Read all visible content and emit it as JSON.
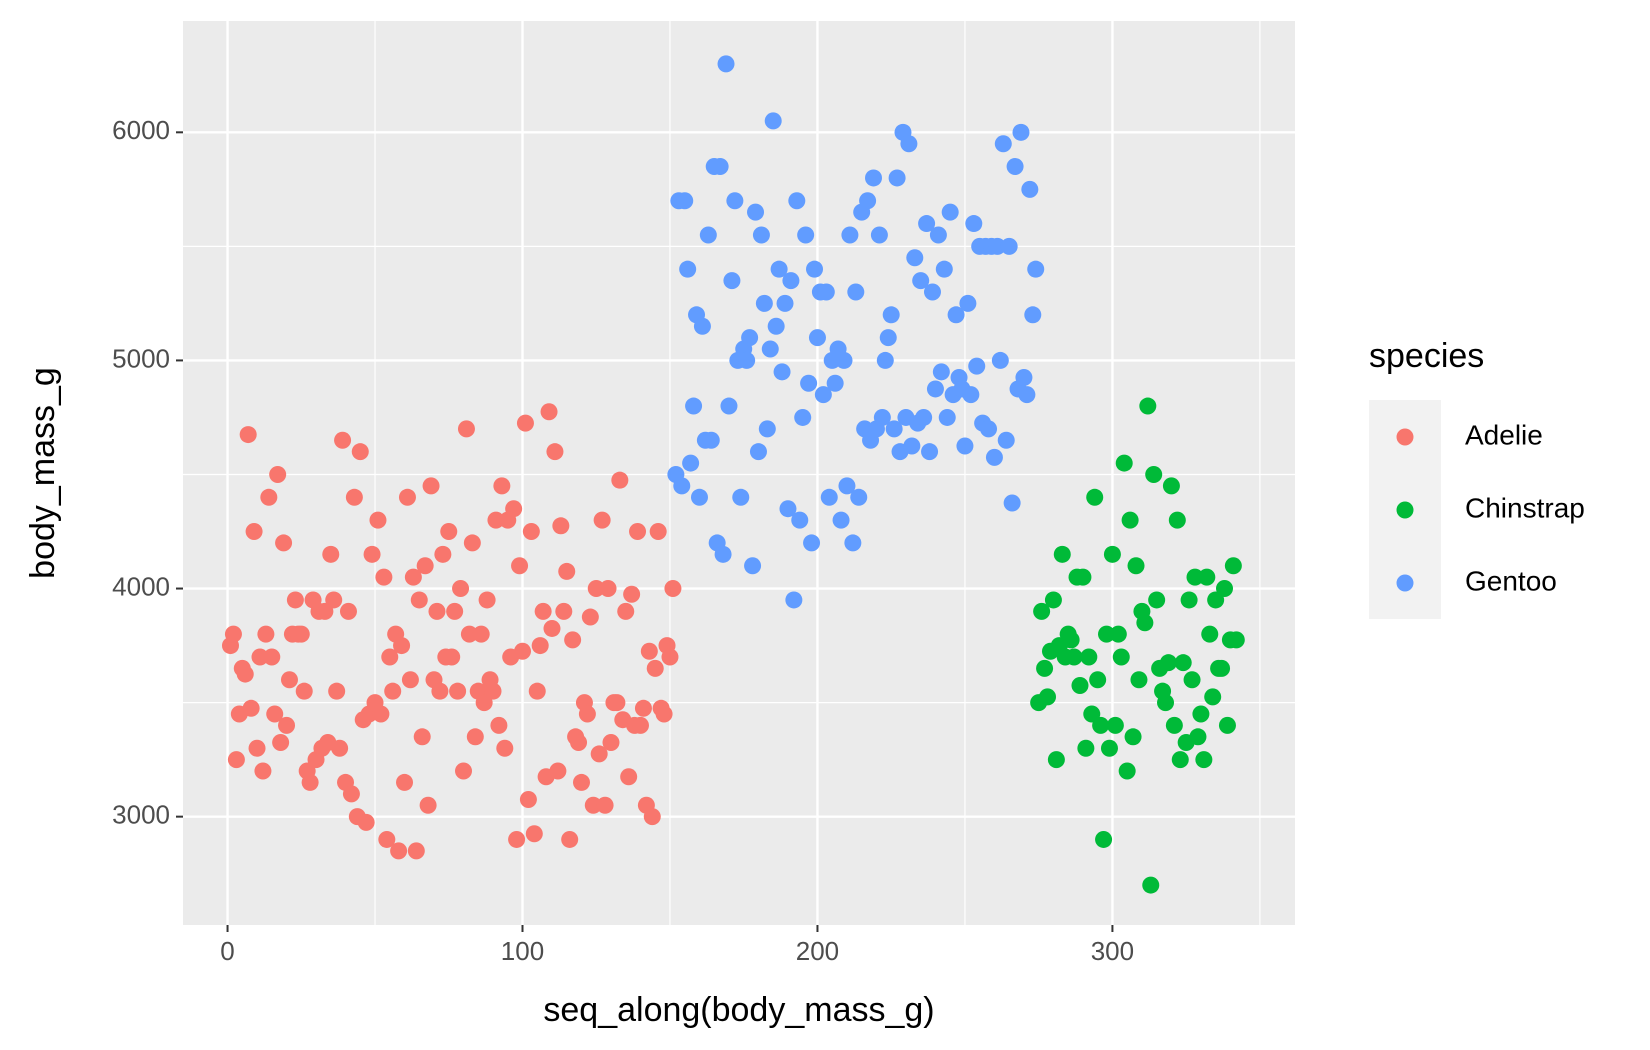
{
  "chart_data": {
    "type": "scatter",
    "x_label": "seq_along(body_mass_g)",
    "y_label": "body_mass_g",
    "legend_title": "species",
    "legend_position": "right",
    "grid": true,
    "xlim": [
      -15.1,
      361.9
    ],
    "ylim": [
      2525,
      6488
    ],
    "xticks": [
      0,
      100,
      200,
      300
    ],
    "yticks": [
      3000,
      4000,
      5000,
      6000
    ],
    "series": [
      {
        "name": "Adelie",
        "color": "#F8766D",
        "x": [
          1,
          2,
          3,
          4,
          5,
          6,
          7,
          8,
          9,
          10,
          11,
          12,
          13,
          14,
          15,
          16,
          17,
          18,
          19,
          20,
          21,
          22,
          23,
          24,
          25,
          26,
          27,
          28,
          29,
          30,
          31,
          32,
          33,
          34,
          35,
          36,
          37,
          38,
          39,
          40,
          41,
          42,
          43,
          44,
          45,
          46,
          47,
          48,
          49,
          50,
          51,
          52,
          53,
          54,
          55,
          56,
          57,
          58,
          59,
          60,
          61,
          62,
          63,
          64,
          65,
          66,
          67,
          68,
          69,
          70,
          71,
          72,
          73,
          74,
          75,
          76,
          77,
          78,
          79,
          80,
          81,
          82,
          83,
          84,
          85,
          86,
          87,
          88,
          89,
          90,
          91,
          92,
          93,
          94,
          95,
          96,
          97,
          98,
          99,
          100,
          101,
          102,
          103,
          104,
          105,
          106,
          107,
          108,
          109,
          110,
          111,
          112,
          113,
          114,
          115,
          116,
          117,
          118,
          119,
          120,
          121,
          122,
          123,
          124,
          125,
          126,
          127,
          128,
          129,
          130,
          131,
          132,
          133,
          134,
          135,
          136,
          137,
          138,
          139,
          140,
          141,
          142,
          143,
          144,
          145,
          146,
          147,
          148,
          149,
          150,
          151
        ],
        "values": [
          3750,
          3800,
          3250,
          3450,
          3650,
          3625,
          4675,
          3475,
          4250,
          3300,
          3700,
          3200,
          3800,
          4400,
          3700,
          3450,
          4500,
          3325,
          4200,
          3400,
          3600,
          3800,
          3950,
          3800,
          3800,
          3550,
          3200,
          3150,
          3950,
          3250,
          3900,
          3300,
          3900,
          3325,
          4150,
          3950,
          3550,
          3300,
          4650,
          3150,
          3900,
          3100,
          4400,
          3000,
          4600,
          3425,
          2975,
          3450,
          4150,
          3500,
          4300,
          3450,
          4050,
          2900,
          3700,
          3550,
          3800,
          2850,
          3750,
          3150,
          4400,
          3600,
          4050,
          2850,
          3950,
          3350,
          4100,
          3050,
          4450,
          3600,
          3900,
          3550,
          4150,
          3700,
          4250,
          3700,
          3900,
          3550,
          4000,
          3200,
          4700,
          3800,
          4200,
          3350,
          3550,
          3800,
          3500,
          3950,
          3600,
          3550,
          4300,
          3400,
          4450,
          3300,
          4300,
          3700,
          4350,
          2900,
          4100,
          3725,
          4725,
          3075,
          4250,
          2925,
          3550,
          3750,
          3900,
          3175,
          4775,
          3825,
          4600,
          3200,
          4275,
          3900,
          4075,
          2900,
          3775,
          3350,
          3325,
          3150,
          3500,
          3450,
          3875,
          3050,
          4000,
          3275,
          4300,
          3050,
          4000,
          3325,
          3500,
          3500,
          4475,
          3425,
          3900,
          3175,
          3975,
          3400,
          4250,
          3400,
          3475,
          3050,
          3725,
          3000,
          3650,
          4250,
          3475,
          3450,
          3750,
          3700,
          4000
        ]
      },
      {
        "name": "Chinstrap",
        "color": "#00BA38",
        "x": [
          275,
          276,
          277,
          278,
          279,
          280,
          281,
          282,
          283,
          284,
          285,
          286,
          287,
          288,
          289,
          290,
          291,
          292,
          293,
          294,
          295,
          296,
          297,
          298,
          299,
          300,
          301,
          302,
          303,
          304,
          305,
          306,
          307,
          308,
          309,
          310,
          311,
          312,
          313,
          314,
          315,
          316,
          317,
          318,
          319,
          320,
          321,
          322,
          323,
          324,
          325,
          326,
          327,
          328,
          329,
          330,
          331,
          332,
          333,
          334,
          335,
          336,
          337,
          338,
          339,
          340,
          341,
          342
        ],
        "values": [
          3500,
          3900,
          3650,
          3525,
          3725,
          3950,
          3250,
          3750,
          4150,
          3700,
          3800,
          3775,
          3700,
          4050,
          3575,
          4050,
          3300,
          3700,
          3450,
          4400,
          3600,
          3400,
          2900,
          3800,
          3300,
          4150,
          3400,
          3800,
          3700,
          4550,
          3200,
          4300,
          3350,
          4100,
          3600,
          3900,
          3850,
          4800,
          2700,
          4500,
          3950,
          3650,
          3550,
          3500,
          3675,
          4450,
          3400,
          4300,
          3250,
          3675,
          3325,
          3950,
          3600,
          4050,
          3350,
          3450,
          3250,
          4050,
          3800,
          3525,
          3950,
          3650,
          3650,
          4000,
          3400,
          3775,
          4100,
          3775
        ]
      },
      {
        "name": "Gentoo",
        "color": "#619CFF",
        "x": [
          152,
          153,
          154,
          155,
          156,
          157,
          158,
          159,
          160,
          161,
          162,
          163,
          164,
          165,
          166,
          167,
          168,
          169,
          170,
          171,
          172,
          173,
          174,
          175,
          176,
          177,
          178,
          179,
          180,
          181,
          182,
          183,
          184,
          185,
          186,
          187,
          188,
          189,
          190,
          191,
          192,
          193,
          194,
          195,
          196,
          197,
          198,
          199,
          200,
          201,
          202,
          203,
          204,
          205,
          206,
          207,
          208,
          209,
          210,
          211,
          212,
          213,
          214,
          215,
          216,
          217,
          218,
          219,
          220,
          221,
          222,
          223,
          224,
          225,
          226,
          227,
          228,
          229,
          230,
          231,
          232,
          233,
          234,
          235,
          236,
          237,
          238,
          239,
          240,
          241,
          242,
          243,
          244,
          245,
          246,
          247,
          248,
          249,
          250,
          251,
          252,
          253,
          254,
          255,
          256,
          257,
          258,
          259,
          260,
          261,
          262,
          263,
          264,
          265,
          266,
          267,
          268,
          269,
          270,
          271,
          272,
          273,
          274
        ],
        "values": [
          4500,
          5700,
          4450,
          5700,
          5400,
          4550,
          4800,
          5200,
          4400,
          5150,
          4650,
          5550,
          4650,
          5850,
          4200,
          5850,
          4150,
          6300,
          4800,
          5350,
          5700,
          5000,
          4400,
          5050,
          5000,
          5100,
          4100,
          5650,
          4600,
          5550,
          5250,
          4700,
          5050,
          6050,
          5150,
          5400,
          4950,
          5250,
          4350,
          5350,
          3950,
          5700,
          4300,
          4750,
          5550,
          4900,
          4200,
          5400,
          5100,
          5300,
          4850,
          5300,
          4400,
          5000,
          4900,
          5050,
          4300,
          5000,
          4450,
          5550,
          4200,
          5300,
          4400,
          5650,
          4700,
          5700,
          4650,
          5800,
          4700,
          5550,
          4750,
          5000,
          5100,
          5200,
          4700,
          5800,
          4600,
          6000,
          4750,
          5950,
          4625,
          5450,
          4725,
          5350,
          4750,
          5600,
          4600,
          5300,
          4875,
          5550,
          4950,
          5400,
          4750,
          5650,
          4850,
          5200,
          4925,
          4875,
          4625,
          5250,
          4850,
          5600,
          4975,
          5500,
          4725,
          5500,
          4700,
          5500,
          4575,
          5500,
          5000,
          5950,
          4650,
          5500,
          4375,
          5850,
          4875,
          6000,
          4925,
          4850,
          5750,
          5200,
          5400
        ]
      }
    ]
  }
}
